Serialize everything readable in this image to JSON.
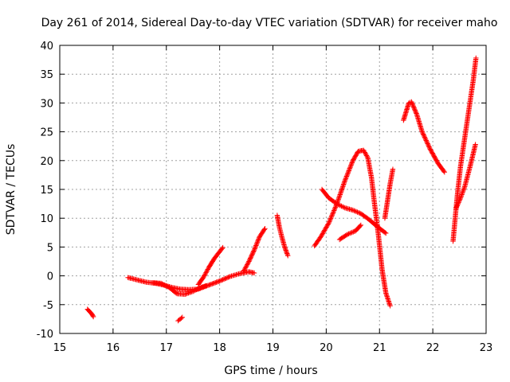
{
  "chart_data": {
    "type": "scatter",
    "title": "Day 261 of 2014, Sidereal Day-to-day VTEC variation (SDTVAR) for receiver maho",
    "xlabel": "GPS time / hours",
    "ylabel": "SDTVAR / TECUs",
    "xlim": [
      15,
      23
    ],
    "ylim": [
      -10,
      40
    ],
    "xticks": [
      "15",
      "16",
      "17",
      "18",
      "19",
      "20",
      "21",
      "22",
      "23"
    ],
    "yticks": [
      "-10",
      "-5",
      "0",
      "5",
      "10",
      "15",
      "20",
      "25",
      "30",
      "35",
      "40"
    ],
    "grid": true,
    "marker": "+",
    "color": "#ff0000",
    "segments": [
      {
        "x": [
          15.52,
          15.56,
          15.6,
          15.63
        ],
        "y": [
          -5.8,
          -6.2,
          -6.6,
          -7.1
        ]
      },
      {
        "x": [
          16.28,
          16.45,
          16.62,
          16.8,
          16.95,
          17.1,
          17.25,
          17.42,
          17.6,
          17.8,
          18.0,
          18.2,
          18.38,
          18.55,
          18.65
        ],
        "y": [
          -0.3,
          -0.7,
          -1.1,
          -1.3,
          -1.6,
          -2.0,
          -2.3,
          -2.4,
          -2.3,
          -1.6,
          -0.9,
          -0.1,
          0.4,
          0.7,
          0.5
        ]
      },
      {
        "x": [
          16.75,
          16.9,
          17.05,
          17.2,
          17.35,
          17.5,
          17.65,
          17.75
        ],
        "y": [
          -1.2,
          -1.3,
          -2.0,
          -3.1,
          -3.2,
          -2.7,
          -2.0,
          -1.7
        ]
      },
      {
        "x": [
          17.6,
          17.7,
          17.8,
          17.9,
          18.0,
          18.06
        ],
        "y": [
          -1.5,
          -0.2,
          1.5,
          3.0,
          4.2,
          4.9
        ]
      },
      {
        "x": [
          17.22,
          17.26,
          17.3
        ],
        "y": [
          -7.8,
          -7.5,
          -7.2
        ]
      },
      {
        "x": [
          18.45,
          18.55,
          18.65,
          18.75,
          18.85
        ],
        "y": [
          0.8,
          2.5,
          4.5,
          6.8,
          8.2
        ]
      },
      {
        "x": [
          19.08,
          19.12,
          19.16,
          19.22,
          19.28
        ],
        "y": [
          10.5,
          8.5,
          7.0,
          5.0,
          3.5
        ]
      },
      {
        "x": [
          19.78,
          19.9,
          20.05,
          20.2,
          20.35,
          20.5,
          20.6,
          20.7,
          20.78,
          20.85,
          20.9,
          20.98,
          21.05,
          21.12,
          21.2
        ],
        "y": [
          5.2,
          6.8,
          9.2,
          12.5,
          16.5,
          20.0,
          21.6,
          21.8,
          20.5,
          17.0,
          13.0,
          7.0,
          1.0,
          -3.0,
          -5.2
        ]
      },
      {
        "x": [
          19.92,
          20.05,
          20.2,
          20.35,
          20.5,
          20.65,
          20.8,
          20.95,
          21.12
        ],
        "y": [
          15.0,
          13.5,
          12.5,
          11.8,
          11.4,
          10.8,
          9.8,
          8.6,
          7.4
        ]
      },
      {
        "x": [
          20.25,
          20.4,
          20.55,
          20.65
        ],
        "y": [
          6.3,
          7.2,
          7.8,
          8.8
        ]
      },
      {
        "x": [
          21.1,
          21.15,
          21.2,
          21.25
        ],
        "y": [
          10.0,
          13.0,
          16.0,
          18.5
        ]
      },
      {
        "x": [
          21.45,
          21.5,
          21.55,
          21.6,
          21.7,
          21.8,
          21.95,
          22.1,
          22.22
        ],
        "y": [
          27.0,
          28.5,
          30.0,
          30.2,
          28.0,
          25.0,
          22.0,
          19.5,
          18.0
        ]
      },
      {
        "x": [
          22.38,
          22.42,
          22.46,
          22.52,
          22.6,
          22.68,
          22.76,
          22.81
        ],
        "y": [
          6.0,
          10.0,
          14.0,
          19.0,
          24.0,
          29.0,
          34.0,
          37.8
        ]
      },
      {
        "x": [
          22.44,
          22.52,
          22.6,
          22.7,
          22.8
        ],
        "y": [
          11.8,
          13.5,
          15.5,
          19.0,
          22.8
        ]
      }
    ]
  }
}
